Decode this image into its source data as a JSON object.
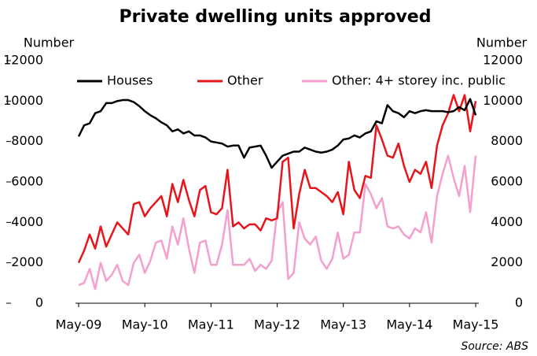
{
  "chart_data": {
    "type": "line",
    "title": "Private dwelling units approved",
    "y_label": "Number",
    "y2_label": "Number",
    "source": "Source: ABS",
    "categories": [
      "May-09",
      null,
      null,
      null,
      null,
      null,
      null,
      null,
      null,
      null,
      null,
      null,
      "May-10",
      null,
      null,
      null,
      null,
      null,
      null,
      null,
      null,
      null,
      null,
      null,
      "May-11",
      null,
      null,
      null,
      null,
      null,
      null,
      null,
      null,
      null,
      null,
      null,
      "May-12",
      null,
      null,
      null,
      null,
      null,
      null,
      null,
      null,
      null,
      null,
      null,
      "May-13",
      null,
      null,
      null,
      null,
      null,
      null,
      null,
      null,
      null,
      null,
      null,
      "May-14",
      null,
      null,
      null,
      null,
      null,
      null,
      null,
      null,
      null,
      null,
      null,
      "May-15"
    ],
    "series": [
      {
        "name": "Houses",
        "color": "#000000",
        "values": [
          8250,
          8800,
          8900,
          9400,
          9500,
          9900,
          9900,
          10000,
          10050,
          10050,
          9950,
          9750,
          9500,
          9300,
          9150,
          8950,
          8800,
          8500,
          8600,
          8400,
          8500,
          8300,
          8300,
          8200,
          8000,
          7950,
          7900,
          7750,
          7800,
          7800,
          7200,
          7700,
          7750,
          7800,
          7300,
          6700,
          7000,
          7300,
          7400,
          7500,
          7500,
          7700,
          7600,
          7500,
          7450,
          7500,
          7600,
          7800,
          8100,
          8150,
          8300,
          8200,
          8400,
          8500,
          9000,
          8900,
          9800,
          9500,
          9400,
          9200,
          9500,
          9400,
          9500,
          9550,
          9500,
          9500,
          9500,
          9450,
          9500,
          9700,
          9550,
          10100,
          9300
        ]
      },
      {
        "name": "Other",
        "color": "#e8141b",
        "values": [
          2000,
          2600,
          3400,
          2700,
          3800,
          2800,
          3400,
          4000,
          3700,
          3400,
          4900,
          5000,
          4300,
          4700,
          5000,
          5300,
          4300,
          5900,
          5000,
          6100,
          5100,
          4300,
          5600,
          5800,
          4500,
          4400,
          4700,
          6600,
          3800,
          4000,
          3700,
          3900,
          3900,
          3600,
          4200,
          4100,
          4200,
          7000,
          7200,
          3700,
          5400,
          6600,
          5700,
          5700,
          5500,
          5300,
          5000,
          5500,
          4400,
          7000,
          5600,
          5200,
          6300,
          6200,
          8800,
          8100,
          7300,
          7200,
          7900,
          6800,
          6000,
          6600,
          6400,
          7000,
          5700,
          7800,
          8800,
          9400,
          10300,
          9500,
          10300,
          8500,
          10000
        ]
      },
      {
        "name": "Other: 4+ storey inc. public",
        "color": "#f59fcf",
        "axis": "y2",
        "values": [
          900,
          1000,
          1700,
          700,
          2000,
          1100,
          1400,
          1900,
          1100,
          900,
          2000,
          2400,
          1500,
          2100,
          3000,
          3100,
          2200,
          3800,
          2900,
          4200,
          2700,
          1500,
          3000,
          3100,
          1900,
          1900,
          2900,
          4600,
          1900,
          1900,
          1900,
          2200,
          1600,
          1900,
          1700,
          2100,
          4500,
          5000,
          1200,
          1500,
          4000,
          3200,
          2900,
          3300,
          2100,
          1700,
          2200,
          3500,
          2200,
          2400,
          3500,
          3500,
          5900,
          5400,
          4700,
          5200,
          3800,
          3700,
          3800,
          3400,
          3200,
          3700,
          3500,
          4500,
          3000,
          5300,
          6400,
          7300,
          6200,
          5300,
          6800,
          4500,
          7300
        ]
      }
    ],
    "ylim": [
      0,
      12000
    ],
    "yticks": [
      0,
      2000,
      4000,
      6000,
      8000,
      10000,
      12000
    ],
    "y2lim": [
      0,
      12000
    ],
    "y2ticks": [
      0,
      2000,
      4000,
      6000,
      8000,
      10000,
      12000
    ],
    "legend": "upper left",
    "grid": false
  }
}
